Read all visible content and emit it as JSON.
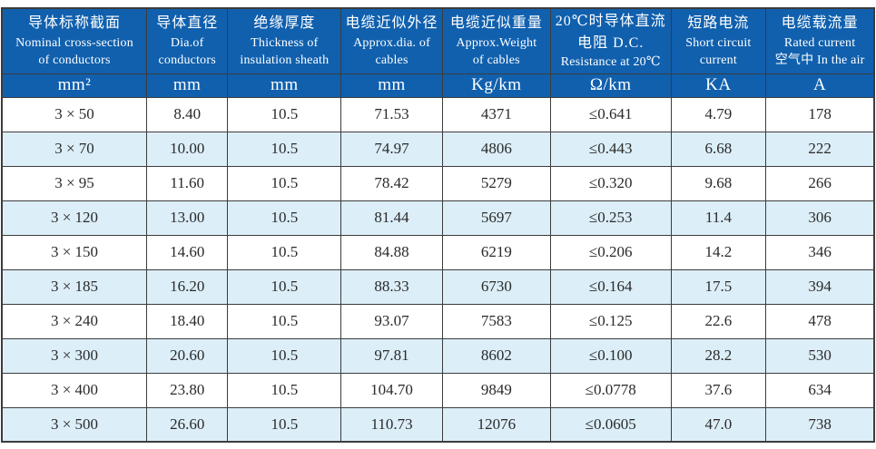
{
  "colors": {
    "header_background": "#1060ae",
    "header_text": "#ffffff",
    "alternate_row_background": "#dceef8",
    "border": "#3c3c3c",
    "body_text": "#2a2a2a"
  },
  "table": {
    "columns": [
      {
        "line1": "导体标称截面",
        "line2": "Nominal cross-section",
        "line3": "of conductors",
        "unit": "mm²"
      },
      {
        "line1": "导体直径",
        "line2": "Dia.of",
        "line3": "conductors",
        "unit": "mm"
      },
      {
        "line1": "绝缘厚度",
        "line2": "Thickness of",
        "line3": "insulation sheath",
        "unit": "mm"
      },
      {
        "line1": "电缆近似外径",
        "line2": "Approx.dia. of",
        "line3": "cables",
        "unit": "mm"
      },
      {
        "line1": "电缆近似重量",
        "line2": "Approx.Weight",
        "line3": "of cables",
        "unit": "Kg/km"
      },
      {
        "line1": "20℃时导体直流",
        "line2": "电阻 D.C.",
        "line3": "Resistance at 20℃",
        "unit": "Ω/km"
      },
      {
        "line1": "短路电流",
        "line2": "Short circuit",
        "line3": "current",
        "unit": "KA"
      },
      {
        "line1": "电缆载流量",
        "line2": "Rated current",
        "line3": "空气中 In the air",
        "unit": "A"
      }
    ],
    "rows": [
      [
        "3 × 50",
        "8.40",
        "10.5",
        "71.53",
        "4371",
        "≤0.641",
        "4.79",
        "178"
      ],
      [
        "3 × 70",
        "10.00",
        "10.5",
        "74.97",
        "4806",
        "≤0.443",
        "6.68",
        "222"
      ],
      [
        "3 × 95",
        "11.60",
        "10.5",
        "78.42",
        "5279",
        "≤0.320",
        "9.68",
        "266"
      ],
      [
        "3 × 120",
        "13.00",
        "10.5",
        "81.44",
        "5697",
        "≤0.253",
        "11.4",
        "306"
      ],
      [
        "3 × 150",
        "14.60",
        "10.5",
        "84.88",
        "6219",
        "≤0.206",
        "14.2",
        "346"
      ],
      [
        "3 × 185",
        "16.20",
        "10.5",
        "88.33",
        "6730",
        "≤0.164",
        "17.5",
        "394"
      ],
      [
        "3 × 240",
        "18.40",
        "10.5",
        "93.07",
        "7583",
        "≤0.125",
        "22.6",
        "478"
      ],
      [
        "3 × 300",
        "20.60",
        "10.5",
        "97.81",
        "8602",
        "≤0.100",
        "28.2",
        "530"
      ],
      [
        "3 × 400",
        "23.80",
        "10.5",
        "104.70",
        "9849",
        "≤0.0778",
        "37.6",
        "634"
      ],
      [
        "3 × 500",
        "26.60",
        "10.5",
        "110.73",
        "12076",
        "≤0.0605",
        "47.0",
        "738"
      ]
    ]
  }
}
